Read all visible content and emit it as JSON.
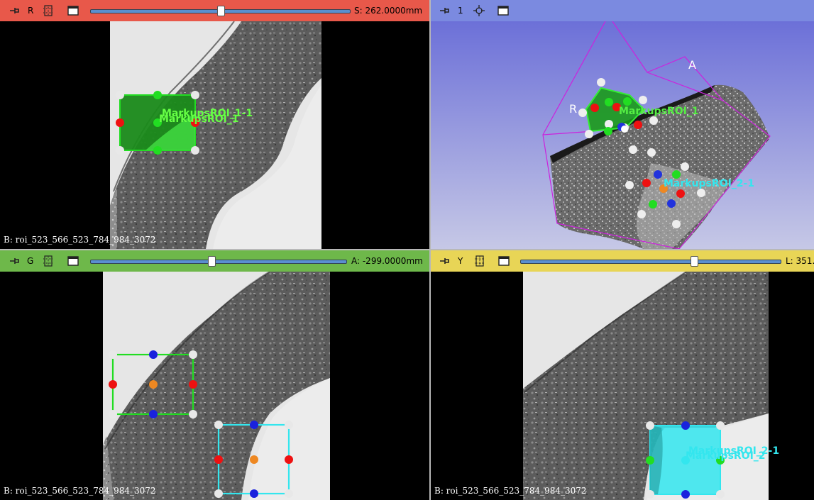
{
  "colors": {
    "red_bar": "#e8584a",
    "blue_bar": "#7b8ae0",
    "green_bar": "#6eb84a",
    "yellow_bar": "#e8d556",
    "roi1": "#22cc22",
    "roi2": "#33e6ee"
  },
  "panels": {
    "red": {
      "letter": "R",
      "offset": "S: 262.0000mm",
      "slider_fraction": 0.5,
      "volume": "B: roi_523_566_523_784_984_3072",
      "roi_label_a": "MarkupsROI_1-1",
      "roi_label_b": "MarkupsROI_1"
    },
    "threed": {
      "letter": "1",
      "axis_r": "R",
      "axis_a": "A",
      "roi_label_1": "MarkupsROI_1",
      "roi_label_2": "MarkupsROI_2-1"
    },
    "green": {
      "letter": "G",
      "offset": "A: -299.0000mm",
      "slider_fraction": 0.47,
      "volume": "B: roi_523_566_523_784_984_3072"
    },
    "yellow": {
      "letter": "Y",
      "offset": "L: 351.",
      "slider_fraction": 0.66,
      "volume": "B: roi_523_566_523_784_984_3072",
      "roi_label_a": "MarkupsROI_2-1",
      "roi_label_b": "MarkupsROI_2"
    }
  },
  "icons": {
    "pin": "pin-icon",
    "link": "link-icon",
    "crosshair": "center-view-icon",
    "maximize": "maximize-view-icon"
  }
}
